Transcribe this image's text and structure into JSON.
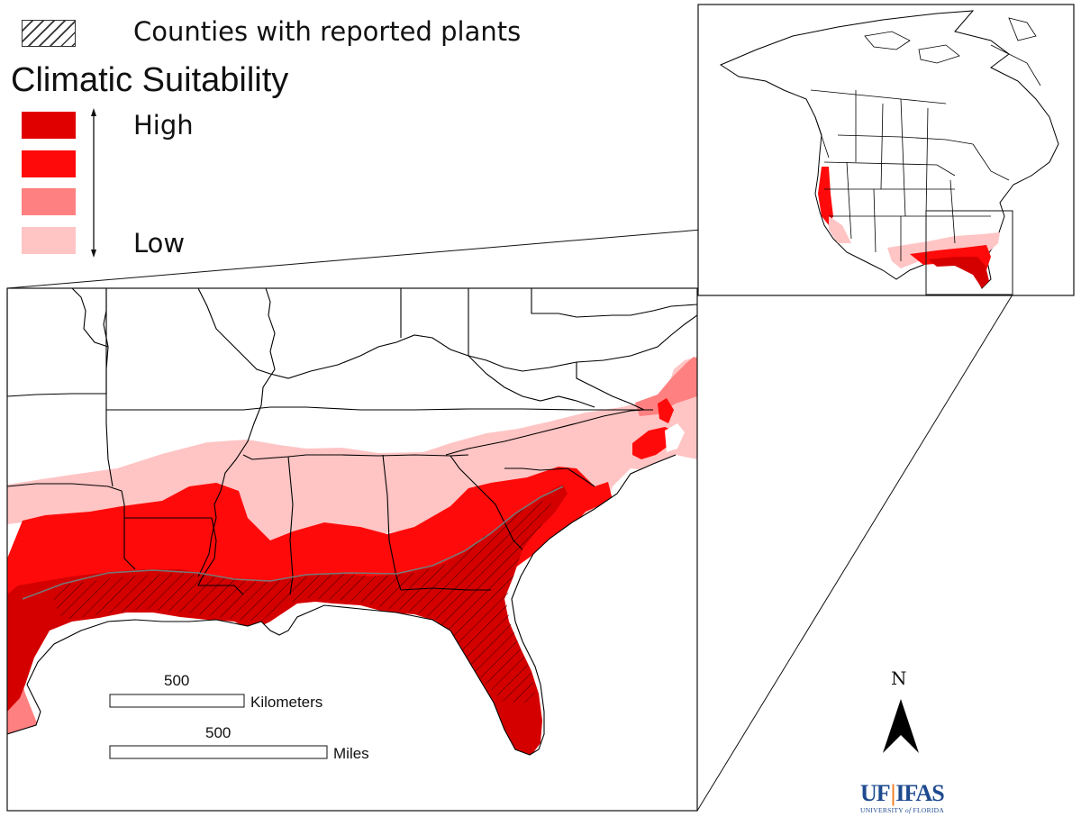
{
  "legend": {
    "counties_label": "Counties with reported plants",
    "title": "Climatic Suitability",
    "high_label": "High",
    "low_label": "Low",
    "classes": [
      {
        "color": "#e00000"
      },
      {
        "color": "#ff0a0a"
      },
      {
        "color": "#ff8080"
      },
      {
        "color": "#ffc4c4"
      }
    ]
  },
  "scale_bars": {
    "km_value": "500",
    "km_unit": "Kilometers",
    "mi_value": "500",
    "mi_unit": "Miles"
  },
  "north_arrow": {
    "label": "N"
  },
  "logo": {
    "left": "UF",
    "right": "IFAS",
    "subtitle_pre": "UNIVERSITY ",
    "subtitle_of": "of",
    "subtitle_post": " FLORIDA"
  },
  "colors": {
    "high": "#e00000",
    "med_high": "#ff0a0a",
    "med_low": "#ff8080",
    "low": "#ffc4c4",
    "core": "#d40000",
    "border": "#000000"
  }
}
